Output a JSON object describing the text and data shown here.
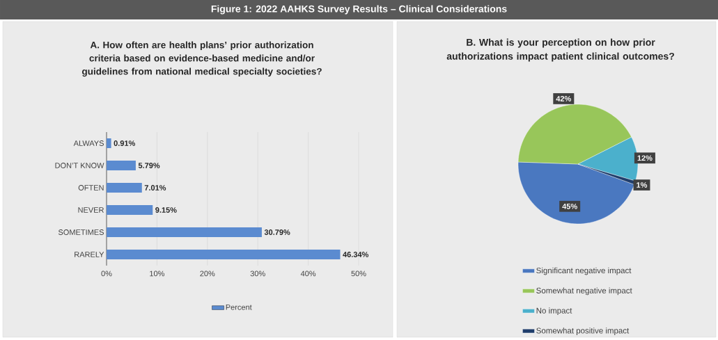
{
  "chart_data": [
    {
      "type": "other",
      "title": "Figure 1: 2022 AAHKS Survey Results – Clinical Considerations"
    },
    {
      "type": "bar",
      "orientation": "horizontal",
      "title": "A. How often are health plans’ prior authorization criteria based on evidence-based medicine and/or guidelines from national medical specialty societies?",
      "categories": [
        "ALWAYS",
        "DON’T KNOW",
        "OFTEN",
        "NEVER",
        "SOMETIMES",
        "RARELY"
      ],
      "series": [
        {
          "name": "Percent",
          "color": "#5b8bd0",
          "values": [
            0.91,
            5.79,
            7.01,
            9.15,
            30.79,
            46.34
          ],
          "value_labels": [
            "0.91%",
            "5.79%",
            "7.01%",
            "9.15%",
            "30.79%",
            "46.34%"
          ]
        }
      ],
      "xlim": [
        0,
        50
      ],
      "xticks": [
        {
          "value": 0,
          "label": "0%"
        },
        {
          "value": 10,
          "label": "10%"
        },
        {
          "value": 20,
          "label": "20%"
        },
        {
          "value": 30,
          "label": "30%"
        },
        {
          "value": 40,
          "label": "40%"
        },
        {
          "value": 50,
          "label": "50%"
        }
      ],
      "grid": "x",
      "legend": "bottom"
    },
    {
      "type": "pie",
      "title": "B. What is your perception on how prior authorizations impact patient clinical outcomes?",
      "categories": [
        "Significant negative impact",
        "Somewhat negative impact",
        "No impact",
        "Somewhat positive impact"
      ],
      "values": [
        45,
        42,
        12,
        1
      ],
      "value_labels": [
        "45%",
        "42%",
        "12%",
        "1%"
      ],
      "colors": [
        "#4a78c0",
        "#98c65a",
        "#4bb0cc",
        "#1f3d6b"
      ],
      "legend": "bottom"
    }
  ]
}
